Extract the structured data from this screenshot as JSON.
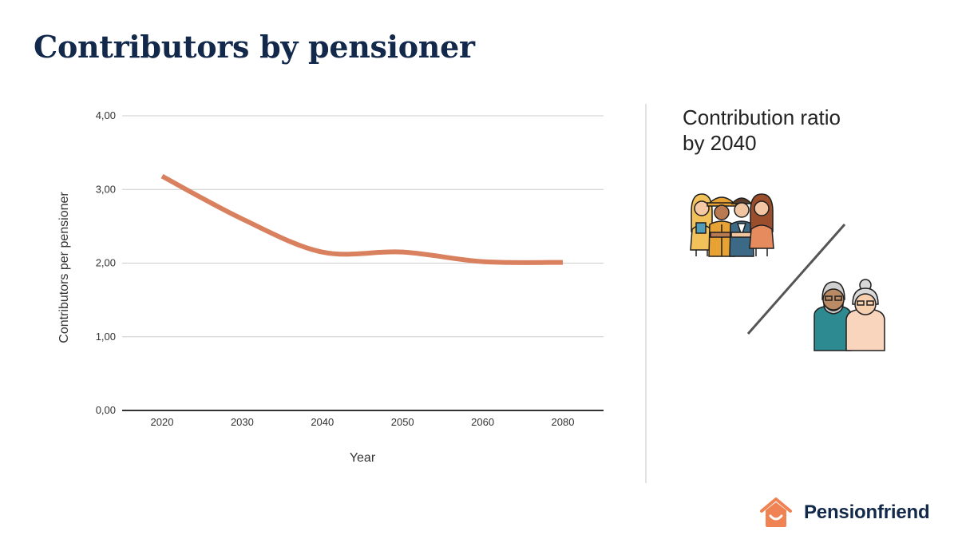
{
  "header": {
    "title": "Contributors by pensioner"
  },
  "chart_data": {
    "type": "line",
    "categories": [
      "2020",
      "2030",
      "2040",
      "2050",
      "2060",
      "2080"
    ],
    "series": [
      {
        "values": [
          3.18,
          2.6,
          2.15,
          2.15,
          2.02,
          2.01
        ],
        "color": "#d9805f"
      }
    ],
    "y_ticks": [
      "0,00",
      "1,00",
      "2,00",
      "3,00",
      "4,00"
    ],
    "ylim": [
      0,
      4
    ],
    "xlabel": "Year",
    "ylabel": "Contributors per pensioner",
    "grid": true
  },
  "side_panel": {
    "title_line1": "Contribution ratio",
    "title_line2": "by 2040",
    "icons": [
      "workers-group-icon",
      "pensioners-couple-icon",
      "ratio-slash-icon"
    ]
  },
  "brand": {
    "name": "Pensionfriend",
    "logo_icon": "house-smile-icon",
    "logo_color": "#ef8354"
  }
}
